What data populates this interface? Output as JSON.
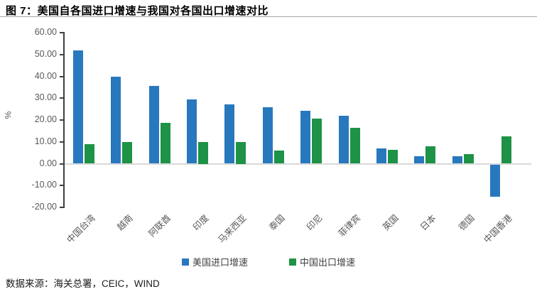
{
  "title": "图 7：美国自各国进口增速与我国对各国出口增速对比",
  "source_note": "数据来源：海关总署，CEIC，WIND",
  "chart_data": {
    "type": "bar",
    "title": "图 7：美国自各国进口增速与我国对各国出口增速对比",
    "categories": [
      "中国台湾",
      "越南",
      "阿联酋",
      "印度",
      "马来西亚",
      "泰国",
      "印尼",
      "菲律宾",
      "英国",
      "日本",
      "德国",
      "中国香港"
    ],
    "series": [
      {
        "name": "美国进口增速",
        "color": "#2878BE",
        "values": [
          52.0,
          39.7,
          35.5,
          29.3,
          27.0,
          25.8,
          24.3,
          21.8,
          7.0,
          3.5,
          3.5,
          -14.8
        ]
      },
      {
        "name": "中国出口增速",
        "color": "#1E9246",
        "values": [
          9.0,
          9.8,
          18.8,
          10.0,
          10.0,
          6.0,
          20.7,
          16.5,
          6.5,
          8.0,
          4.5,
          12.4
        ]
      }
    ],
    "xlabel": "",
    "ylabel": "%",
    "ylim": [
      -20,
      60
    ],
    "ytick_step": 10,
    "yticks": [
      "60.00",
      "50.00",
      "40.00",
      "30.00",
      "20.00",
      "10.00",
      "0.00",
      "-10.00",
      "-20.00"
    ],
    "grid": "zero-line-only",
    "legend_position": "bottom"
  }
}
